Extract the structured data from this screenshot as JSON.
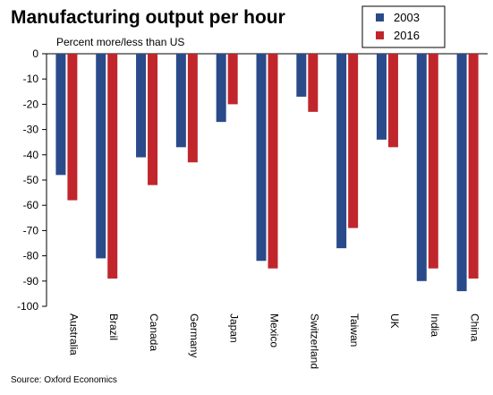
{
  "chart_data": {
    "type": "bar",
    "title": "Manufacturing output per hour",
    "subtitle": "Percent more/less than US",
    "source": "Source: Oxford Economics",
    "categories": [
      "Australia",
      "Brazil",
      "Canada",
      "Germany",
      "Japan",
      "Mexico",
      "Switzerland",
      "Taiwan",
      "UK",
      "India",
      "China"
    ],
    "series": [
      {
        "name": "2003",
        "color": "#2a4a8a",
        "values": [
          -48,
          -81,
          -41,
          -37,
          -27,
          -82,
          -17,
          -77,
          -34,
          -90,
          -94
        ]
      },
      {
        "name": "2016",
        "color": "#c0262c",
        "values": [
          -58,
          -89,
          -52,
          -43,
          -20,
          -85,
          -23,
          -69,
          -37,
          -85,
          -89
        ]
      }
    ],
    "yticks": [
      0,
      -10,
      -20,
      -30,
      -40,
      -50,
      -60,
      -70,
      -80,
      -90,
      -100
    ],
    "ylim": [
      -100,
      0
    ],
    "grid": false,
    "legend_position": "top-right"
  }
}
